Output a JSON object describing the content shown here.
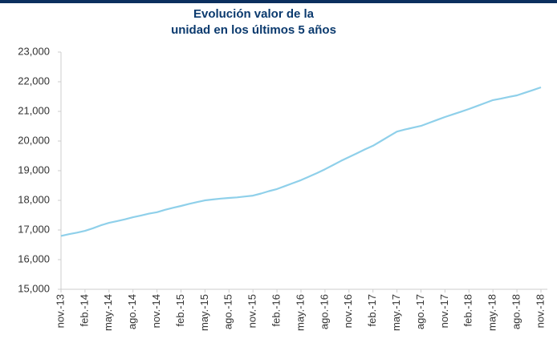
{
  "chart_data": {
    "type": "line",
    "title": [
      "Evolución valor de la",
      "unidad en los últimos 5 años"
    ],
    "categories": [
      "nov.-13",
      null,
      null,
      "feb.-14",
      null,
      null,
      "may.-14",
      null,
      null,
      "ago.-14",
      null,
      null,
      "nov.-14",
      null,
      null,
      "feb.-15",
      null,
      null,
      "may.-15",
      null,
      null,
      "ago.-15",
      null,
      null,
      "nov.-15",
      null,
      null,
      "feb.-16",
      null,
      null,
      "may.-16",
      null,
      null,
      "ago.-16",
      null,
      null,
      "nov.-16",
      null,
      null,
      "feb.-17",
      null,
      null,
      "may.-17",
      null,
      null,
      "ago.-17",
      null,
      null,
      "nov.-17",
      null,
      null,
      "feb.-18",
      null,
      null,
      "may.-18",
      null,
      null,
      "ago.-18",
      null,
      null,
      "nov.-18"
    ],
    "values": [
      16800,
      16860,
      16910,
      16970,
      17060,
      17160,
      17240,
      17300,
      17360,
      17430,
      17490,
      17550,
      17600,
      17680,
      17750,
      17810,
      17880,
      17940,
      18000,
      18030,
      18060,
      18080,
      18100,
      18130,
      18160,
      18230,
      18310,
      18380,
      18480,
      18580,
      18680,
      18800,
      18920,
      19050,
      19190,
      19330,
      19460,
      19590,
      19720,
      19840,
      20000,
      20160,
      20320,
      20390,
      20450,
      20510,
      20610,
      20710,
      20810,
      20900,
      20990,
      21080,
      21180,
      21280,
      21380,
      21430,
      21490,
      21540,
      21630,
      21720,
      21810
    ],
    "color": "#8fd0ea",
    "ylim": [
      15000,
      23000
    ],
    "yticks": [
      {
        "value": 15000,
        "label": "15,000"
      },
      {
        "value": 16000,
        "label": "16,000"
      },
      {
        "value": 17000,
        "label": "17,000"
      },
      {
        "value": 18000,
        "label": "18,000"
      },
      {
        "value": 19000,
        "label": "19,000"
      },
      {
        "value": 20000,
        "label": "20,000"
      },
      {
        "value": 21000,
        "label": "21,000"
      },
      {
        "value": 22000,
        "label": "22,000"
      },
      {
        "value": 23000,
        "label": "23,000"
      }
    ],
    "grid": false
  }
}
